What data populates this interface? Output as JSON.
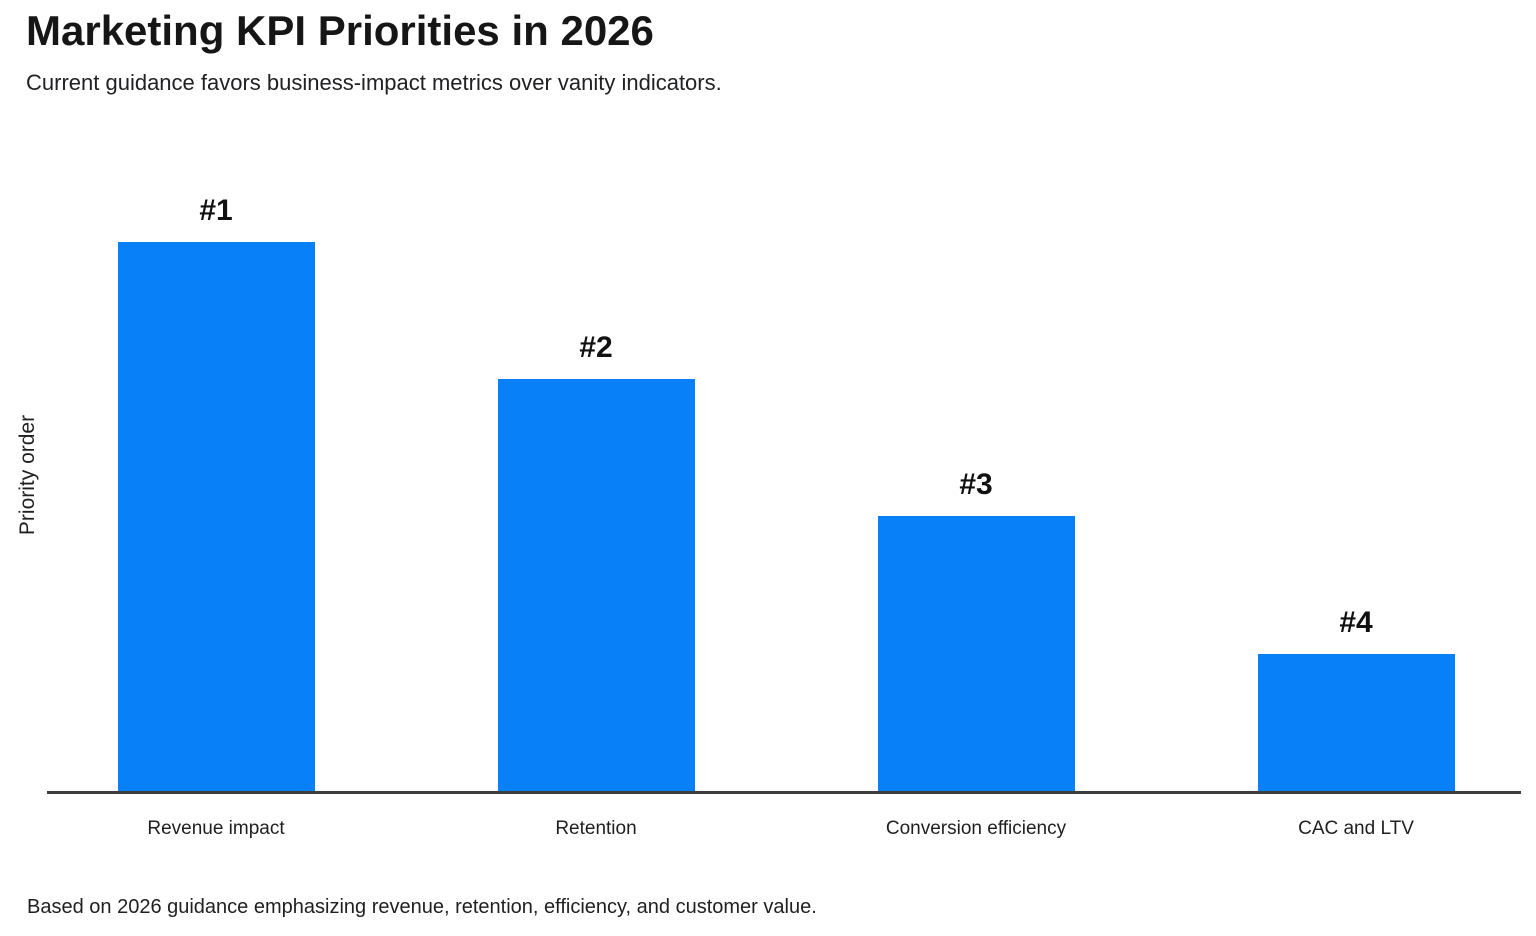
{
  "chart_data": {
    "type": "bar",
    "title": "Marketing KPI Priorities in 2026",
    "subtitle": "Current guidance favors business-impact metrics over vanity indicators.",
    "categories": [
      "Revenue impact",
      "Retention",
      "Conversion efficiency",
      "CAC and LTV"
    ],
    "values": [
      4,
      3,
      2,
      1
    ],
    "bar_labels": [
      "#1",
      "#2",
      "#3",
      "#4"
    ],
    "xlabel": "",
    "ylabel": "Priority order",
    "ylim": [
      0,
      4
    ],
    "grid": false,
    "legend": false,
    "bar_color": "#0880f8",
    "axis_color": "#3d3d3d",
    "text_color": "#1f1f1f",
    "footnote": "Based on 2026 guidance emphasizing revenue, retention, efficiency, and customer value."
  }
}
